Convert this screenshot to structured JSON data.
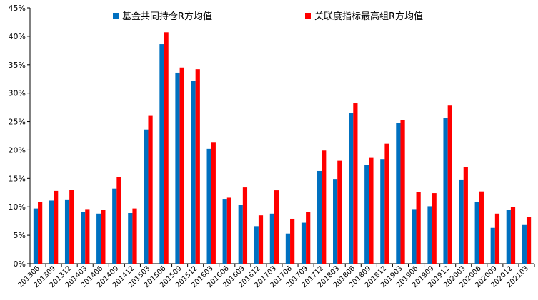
{
  "chart_data": {
    "type": "bar",
    "title": "",
    "xlabel": "",
    "ylabel": "",
    "ylim": [
      0,
      0.45
    ],
    "y_ticks": [
      "0%",
      "5%",
      "10%",
      "15%",
      "20%",
      "25%",
      "30%",
      "35%",
      "40%",
      "45%"
    ],
    "legend_position": "top",
    "categories": [
      "201306",
      "201309",
      "201312",
      "201403",
      "201406",
      "201409",
      "201412",
      "201503",
      "201506",
      "201509",
      "201512",
      "201603",
      "201606",
      "201609",
      "201612",
      "201703",
      "201706",
      "201709",
      "201712",
      "201803",
      "201806",
      "201809",
      "201812",
      "201903",
      "201906",
      "201909",
      "201912",
      "202003",
      "202006",
      "202009",
      "202012",
      "202103"
    ],
    "series": [
      {
        "name": "基金共同持仓R方均值",
        "color": "#0070C0",
        "values": [
          0.097,
          0.111,
          0.113,
          0.091,
          0.088,
          0.132,
          0.089,
          0.236,
          0.386,
          0.336,
          0.322,
          0.202,
          0.114,
          0.104,
          0.066,
          0.088,
          0.053,
          0.072,
          0.163,
          0.149,
          0.265,
          0.173,
          0.184,
          0.247,
          0.096,
          0.101,
          0.256,
          0.148,
          0.108,
          0.063,
          0.095,
          0.068
        ]
      },
      {
        "name": "关联度指标最高组R方均值",
        "color": "#FF0000",
        "values": [
          0.108,
          0.128,
          0.13,
          0.096,
          0.095,
          0.152,
          0.097,
          0.26,
          0.407,
          0.345,
          0.342,
          0.214,
          0.116,
          0.134,
          0.085,
          0.129,
          0.079,
          0.091,
          0.199,
          0.181,
          0.282,
          0.186,
          0.211,
          0.252,
          0.126,
          0.124,
          0.278,
          0.17,
          0.127,
          0.088,
          0.1,
          0.082
        ]
      }
    ]
  }
}
